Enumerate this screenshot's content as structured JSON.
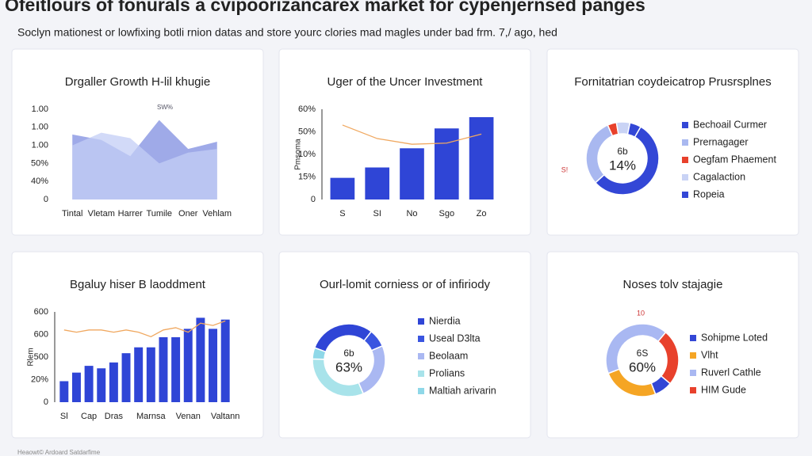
{
  "title": "Ofeitlours of fonurals a cvipoorizancarex market for cypenjernsed panges",
  "subtitle": "Soclyn mationest or lowfixing botli rnion datas and store yourc clories mad magles under bad frm. 7,/ ago, hed",
  "footer": "Heaowt© Ardoard Satdarfime",
  "chart_data": [
    {
      "type": "area",
      "title": "Drgaller Growth H-lil khugie",
      "annotations": [
        "SW%"
      ],
      "categories": [
        "Tintal",
        "Vletam",
        "Harrer",
        "Tumile",
        "Oner",
        "Vehlam"
      ],
      "series": [
        {
          "color": "#7f8ee0",
          "values": [
            3.6,
            3.3,
            2.4,
            4.4,
            2.8,
            3.2
          ]
        },
        {
          "color": "#c3cdf5",
          "values": [
            3.0,
            3.7,
            3.4,
            2.0,
            2.6,
            2.8
          ]
        }
      ],
      "ylim": [
        0,
        5
      ],
      "yticks": [
        0,
        {
          "value": 1,
          "label": "40%"
        },
        {
          "value": 2,
          "label": "50%"
        },
        {
          "value": 3,
          "label": "1.00"
        },
        {
          "value": 4,
          "label": "1.00"
        },
        {
          "value": 5,
          "label": "1.00"
        }
      ]
    },
    {
      "type": "bar",
      "title": "Uger of the Uncer Investment",
      "ylabel": "Pmsoma",
      "categories": [
        "S",
        "SI",
        "No",
        "Sgo",
        "Zo"
      ],
      "series": [
        {
          "type": "bar",
          "color": "#2f45d6",
          "values": [
            0.96,
            1.42,
            2.27,
            3.15,
            3.65
          ]
        },
        {
          "type": "line",
          "color": "#f0a860",
          "values": [
            3.3,
            2.7,
            2.45,
            2.5,
            2.9
          ]
        }
      ],
      "ylim": [
        0,
        4
      ],
      "yticks": [
        0,
        {
          "value": 1,
          "label": "15%"
        },
        {
          "value": 2,
          "label": "10%"
        },
        {
          "value": 3,
          "label": "50%"
        },
        {
          "value": 4,
          "label": "60%"
        }
      ]
    },
    {
      "type": "pie",
      "title": "Fornitatrian coydeicatrop Prusrsplnes",
      "center_label": [
        "6b",
        "14%"
      ],
      "annotations": [
        "S!"
      ],
      "categories": [
        "Bechoail Curmer",
        "Prernagager",
        "Oegfam Phaement",
        "Cagalaction",
        "Ropeia"
      ],
      "values": [
        55,
        30,
        4,
        6,
        5
      ],
      "colors": [
        "#3347d6",
        "#a9b8f0",
        "#e8412c",
        "#c9d3f5",
        "#3347d6"
      ]
    },
    {
      "type": "bar",
      "title": "Bgaluy hiser B laoddment",
      "ylabel": "Rlem",
      "categories": [
        "Sl",
        null,
        "Cap",
        null,
        "Dras",
        null,
        null,
        "Marnsa",
        null,
        null,
        "Venan",
        null,
        null,
        "Valtann"
      ],
      "series": [
        {
          "type": "bar",
          "color": "#2f45d6",
          "values": [
            0.93,
            1.31,
            1.61,
            1.5,
            1.76,
            2.17,
            2.43,
            2.43,
            2.88,
            2.88,
            3.25,
            3.74,
            3.25,
            3.66
          ]
        },
        {
          "type": "line",
          "color": "#f0a860",
          "values": [
            3.2,
            3.1,
            3.2,
            3.2,
            3.1,
            3.2,
            3.1,
            2.9,
            3.2,
            3.3,
            3.1,
            3.5,
            3.4,
            3.6
          ]
        }
      ],
      "ylim": [
        0,
        4
      ],
      "yticks": [
        0,
        {
          "value": 1,
          "label": "20%"
        },
        {
          "value": 2,
          "label": "500"
        },
        {
          "value": 3,
          "label": "600"
        },
        {
          "value": 4,
          "label": "600"
        }
      ]
    },
    {
      "type": "pie",
      "title": "Ourl-lomit corniess or of infiriody",
      "center_label": [
        "6b",
        "63%"
      ],
      "categories": [
        "Nierdia",
        "Useal D3lta",
        "Beolaam",
        "Prolians",
        "Maltiah arivarin"
      ],
      "values": [
        30,
        8,
        25,
        32,
        5
      ],
      "colors": [
        "#2f45d6",
        "#3a55e0",
        "#aab8f2",
        "#a8e3ea",
        "#8fd8e8"
      ]
    },
    {
      "type": "pie",
      "title": "Noses tolv stajagie",
      "center_label": [
        "6S",
        "60%"
      ],
      "annotations": [
        "10"
      ],
      "categories": [
        "Sohipme Loted",
        "Vlht",
        "Ruverl Cathle",
        "HIM Gude"
      ],
      "values": [
        8,
        25,
        42,
        25
      ],
      "colors": [
        "#3347d6",
        "#f5a524",
        "#a9b8f2",
        "#e8412c"
      ]
    }
  ]
}
